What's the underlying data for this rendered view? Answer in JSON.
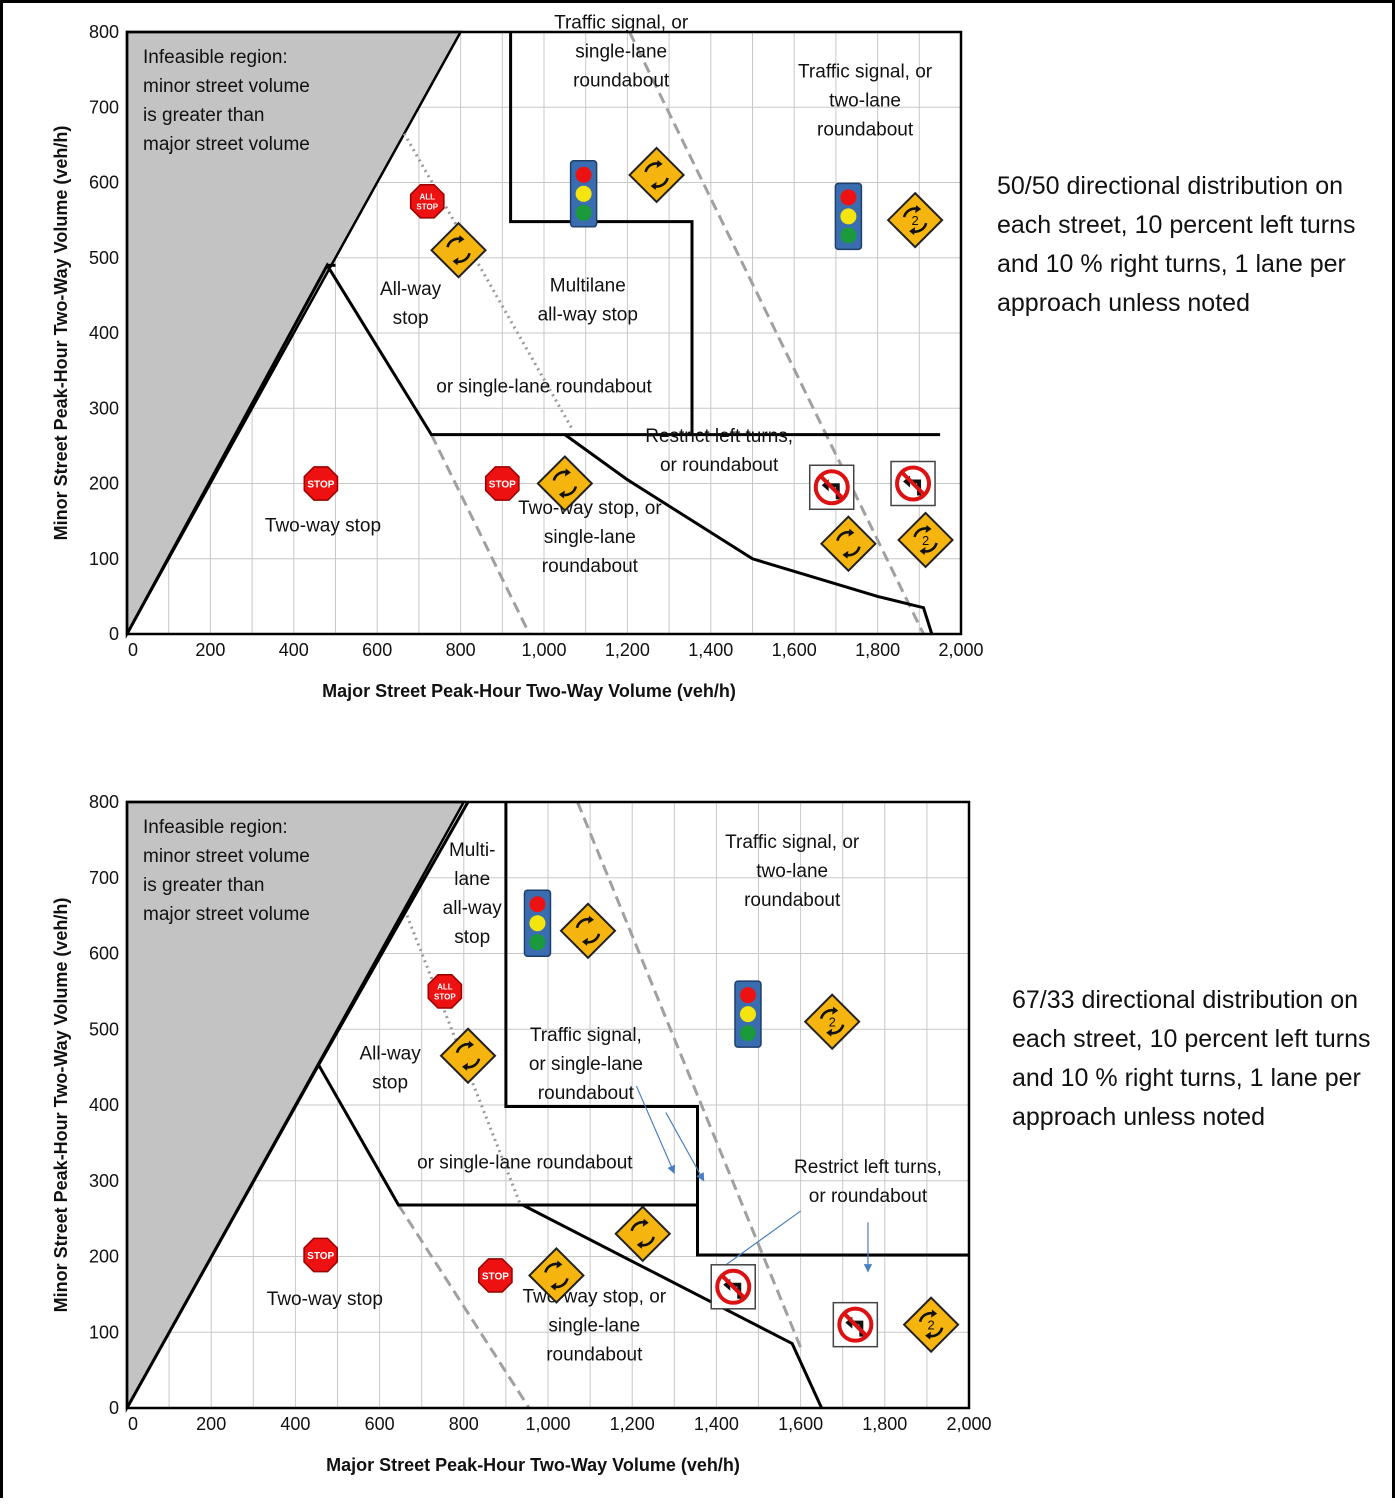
{
  "chart_data": [
    {
      "type": "region-chart",
      "xlabel": "Major Street Peak-Hour Two-Way Volume (veh/h)",
      "ylabel": "Minor Street Peak-Hour Two-Way Volume (veh/h)",
      "xlim": [
        0,
        2000
      ],
      "ylim": [
        0,
        800
      ],
      "grid": "on",
      "xticks": [
        "0",
        "200",
        "400",
        "600",
        "800",
        "1,000",
        "1,200",
        "1,400",
        "1,600",
        "1,800",
        "2,000"
      ],
      "yticks": [
        "0",
        "100",
        "200",
        "300",
        "400",
        "500",
        "600",
        "700",
        "800"
      ],
      "note": "50/50 directional distribution on each street, 10 percent left turns and 10 % right turns, 1 lane per approach unless noted",
      "infeasible_label": "Infeasible region:\nminor street volume\nis greater than\nmajor street volume",
      "region_labels": [
        {
          "text": "Two-way stop",
          "x": 470,
          "y": 145
        },
        {
          "text": "All-way\nstop",
          "x": 680,
          "y": 440
        },
        {
          "text": "Multilane\nall-way stop",
          "x": 1105,
          "y": 445
        },
        {
          "text": "or single-lane roundabout",
          "x": 1000,
          "y": 330
        },
        {
          "text": "Traffic signal, or\nsingle-lane\nroundabout",
          "x": 1185,
          "y": 775
        },
        {
          "text": "Traffic signal, or\ntwo-lane\nroundabout",
          "x": 1770,
          "y": 710
        },
        {
          "text": "Restrict left turns,\nor roundabout",
          "x": 1420,
          "y": 245
        },
        {
          "text": "Two-way stop, or\nsingle-lane\nroundabout",
          "x": 1110,
          "y": 130
        }
      ],
      "solid_lines": [
        [
          [
            0,
            0
          ],
          [
            480,
            490
          ],
          [
            730,
            265
          ],
          [
            1950,
            265
          ]
        ],
        [
          [
            480,
            490
          ],
          [
            500,
            490
          ]
        ],
        [
          [
            920,
            800
          ],
          [
            920,
            548
          ],
          [
            1355,
            548
          ],
          [
            1355,
            265
          ]
        ],
        [
          [
            1050,
            265
          ],
          [
            1200,
            205
          ],
          [
            1500,
            100
          ],
          [
            1800,
            50
          ],
          [
            1910,
            35
          ],
          [
            1930,
            0
          ]
        ]
      ],
      "dashed_lines": [
        [
          [
            730,
            265
          ],
          [
            965,
            0
          ]
        ],
        [
          [
            1205,
            800
          ],
          [
            1910,
            0
          ]
        ]
      ],
      "dotted_lines": [
        [
          [
            665,
            665
          ],
          [
            1070,
            270
          ]
        ]
      ],
      "arrows": [],
      "icons": [
        {
          "name": "all-way-stop-sign",
          "x": 720,
          "y": 575
        },
        {
          "name": "roundabout-sign",
          "x": 795,
          "y": 510
        },
        {
          "name": "traffic-signal",
          "x": 1095,
          "y": 585
        },
        {
          "name": "roundabout-sign",
          "x": 1270,
          "y": 610
        },
        {
          "name": "traffic-signal",
          "x": 1730,
          "y": 555
        },
        {
          "name": "two-lane-roundabout-sign",
          "x": 1890,
          "y": 550
        },
        {
          "name": "stop-sign",
          "x": 465,
          "y": 200
        },
        {
          "name": "stop-sign",
          "x": 900,
          "y": 200
        },
        {
          "name": "roundabout-sign",
          "x": 1050,
          "y": 200
        },
        {
          "name": "no-left-turn-sign",
          "x": 1690,
          "y": 195
        },
        {
          "name": "no-left-turn-sign",
          "x": 1885,
          "y": 200
        },
        {
          "name": "roundabout-sign",
          "x": 1730,
          "y": 120
        },
        {
          "name": "two-lane-roundabout-sign",
          "x": 1915,
          "y": 125
        }
      ]
    },
    {
      "type": "region-chart",
      "xlabel": "Major Street Peak-Hour Two-Way Volume (veh/h)",
      "ylabel": "Minor Street Peak-Hour Two-Way Volume (veh/h)",
      "xlim": [
        0,
        2000
      ],
      "ylim": [
        0,
        800
      ],
      "grid": "on",
      "xticks": [
        "0",
        "200",
        "400",
        "600",
        "800",
        "1,000",
        "1,200",
        "1,400",
        "1,600",
        "1,800",
        "2,000"
      ],
      "yticks": [
        "0",
        "100",
        "200",
        "300",
        "400",
        "500",
        "600",
        "700",
        "800"
      ],
      "note": "67/33 directional distribution on each street, 10 percent left turns and 10 % right turns, 1 lane per approach unless noted",
      "infeasible_label": "Infeasible region:\nminor street volume\nis greater than\nmajor street volume",
      "region_labels": [
        {
          "text": "Multi-\nlane\nall-way\nstop",
          "x": 820,
          "y": 680
        },
        {
          "text": "All-way\nstop",
          "x": 625,
          "y": 450
        },
        {
          "text": "Traffic signal,\nor single-lane\nroundabout",
          "x": 1090,
          "y": 455
        },
        {
          "text": "or single-lane roundabout",
          "x": 945,
          "y": 325
        },
        {
          "text": "Traffic signal, or\ntwo-lane\nroundabout",
          "x": 1580,
          "y": 710
        },
        {
          "text": "Restrict left turns,\nor roundabout",
          "x": 1760,
          "y": 300
        },
        {
          "text": "Two-way stop",
          "x": 470,
          "y": 145
        },
        {
          "text": "Two-way stop, or\nsingle-lane\nroundabout",
          "x": 1110,
          "y": 110
        }
      ],
      "solid_lines": [
        [
          [
            0,
            0
          ],
          [
            455,
            453
          ],
          [
            645,
            268
          ],
          [
            1355,
            268
          ]
        ],
        [
          [
            455,
            453
          ],
          [
            810,
            800
          ]
        ],
        [
          [
            900,
            800
          ],
          [
            900,
            398
          ],
          [
            1355,
            398
          ],
          [
            1355,
            202
          ],
          [
            2000,
            202
          ]
        ],
        [
          [
            940,
            268
          ],
          [
            1580,
            85
          ],
          [
            1650,
            0
          ]
        ]
      ],
      "dashed_lines": [
        [
          [
            645,
            268
          ],
          [
            955,
            0
          ]
        ],
        [
          [
            1070,
            800
          ],
          [
            1600,
            80
          ]
        ]
      ],
      "dotted_lines": [
        [
          [
            665,
            650
          ],
          [
            935,
            268
          ]
        ]
      ],
      "arrows": [
        [
          [
            1210,
            425
          ],
          [
            1300,
            310
          ]
        ],
        [
          [
            1280,
            390
          ],
          [
            1370,
            300
          ]
        ],
        [
          [
            1600,
            260
          ],
          [
            1400,
            180
          ]
        ],
        [
          [
            1760,
            245
          ],
          [
            1760,
            180
          ]
        ]
      ],
      "icons": [
        {
          "name": "traffic-signal",
          "x": 975,
          "y": 640
        },
        {
          "name": "roundabout-sign",
          "x": 1095,
          "y": 630
        },
        {
          "name": "all-way-stop-sign",
          "x": 755,
          "y": 550
        },
        {
          "name": "roundabout-sign",
          "x": 810,
          "y": 465
        },
        {
          "name": "traffic-signal",
          "x": 1475,
          "y": 520
        },
        {
          "name": "two-lane-roundabout-sign",
          "x": 1675,
          "y": 510
        },
        {
          "name": "roundabout-sign",
          "x": 1225,
          "y": 230
        },
        {
          "name": "stop-sign",
          "x": 460,
          "y": 202
        },
        {
          "name": "stop-sign",
          "x": 875,
          "y": 175
        },
        {
          "name": "roundabout-sign",
          "x": 1020,
          "y": 175
        },
        {
          "name": "no-left-turn-sign",
          "x": 1440,
          "y": 160
        },
        {
          "name": "no-left-turn-sign",
          "x": 1730,
          "y": 110
        },
        {
          "name": "two-lane-roundabout-sign",
          "x": 1910,
          "y": 110
        }
      ]
    }
  ]
}
